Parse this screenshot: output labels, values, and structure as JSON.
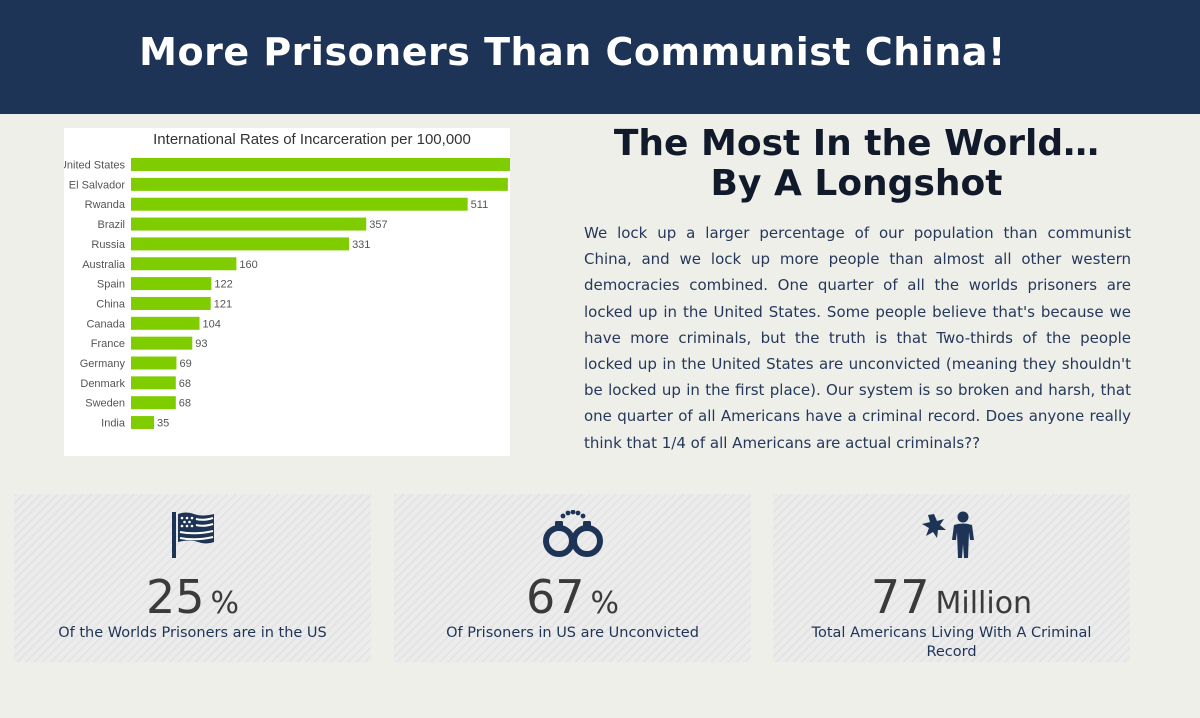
{
  "banner": {
    "title": "More Prisoners Than Communist China!"
  },
  "headline": {
    "line1": "The Most In the World…",
    "line2": "By A Longshot"
  },
  "body": {
    "paragraph": "We lock up a larger percentage of our population than communist China, and we lock up more people than almost all other western democracies combined. One quarter of all the worlds prisoners are locked up in the United States. Some people believe that's because we have more criminals, but the truth is that Two-thirds of the people locked up in the United States are unconvicted (meaning they shouldn't be locked up in the first place). Our system is so broken and harsh, that one quarter of all Americans have a criminal record. Does anyone really think that 1/4 of all Americans are actual criminals??"
  },
  "chart_data": {
    "type": "bar",
    "orientation": "horizontal",
    "title": "International Rates of Incarceration per 100,000",
    "categories": [
      "United States",
      "El Salvador",
      "Rwanda",
      "Brazil",
      "Russia",
      "Australia",
      "Spain",
      "China",
      "Canada",
      "France",
      "Germany",
      "Denmark",
      "Sweden",
      "India"
    ],
    "values": [
      639,
      572,
      511,
      357,
      331,
      160,
      122,
      121,
      104,
      93,
      69,
      68,
      68,
      35
    ],
    "xlim": [
      0,
      639
    ],
    "bar_color": "#7fcc00",
    "grid": false,
    "data_labels": true
  },
  "stats": [
    {
      "icon": "flag-icon",
      "value": "25",
      "unit": "%",
      "caption": "Of the Worlds Prisoners are in the US"
    },
    {
      "icon": "handcuffs-icon",
      "value": "67",
      "unit": "%",
      "caption": "Of Prisoners in US are Unconvicted"
    },
    {
      "icon": "criminal-person-icon",
      "value": "77",
      "unit": "Million",
      "caption": "Total Americans Living With A Criminal Record"
    }
  ],
  "colors": {
    "banner": "#1e3457",
    "accent_navy": "#1e3457",
    "bar": "#7fcc00",
    "background": "#efefea"
  }
}
